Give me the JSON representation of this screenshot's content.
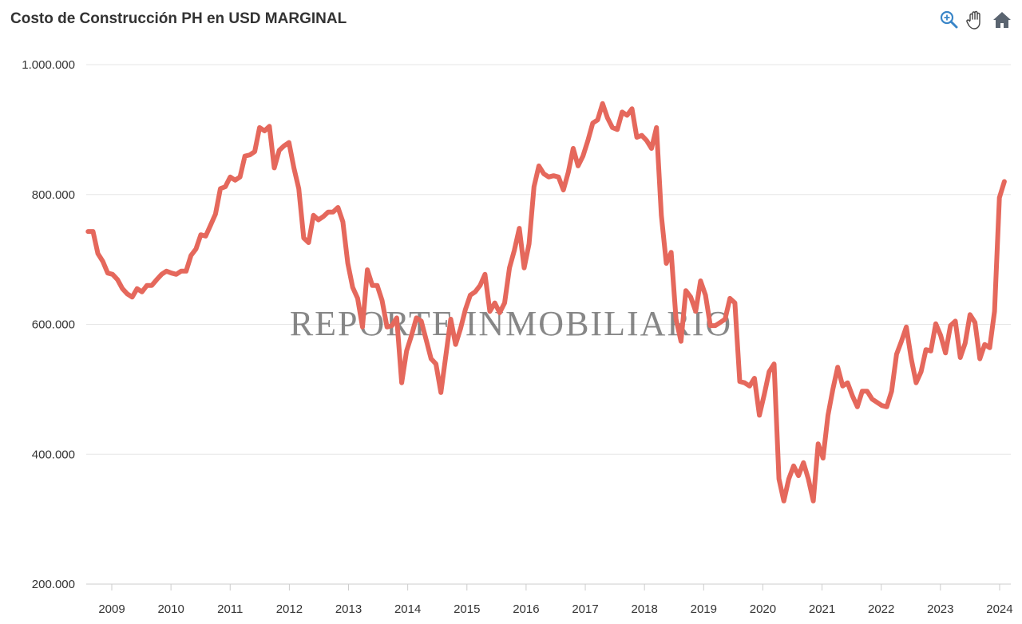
{
  "header": {
    "title": "Costo de Construcción PH en USD MARGINAL"
  },
  "toolbar": {
    "icons": [
      "zoom-in-icon",
      "pan-hand-icon",
      "home-icon"
    ]
  },
  "watermark": "REPORTE INMOBILIARIO",
  "colors": {
    "line": "#e5685c",
    "grid": "#e6e6e6",
    "zoom": "#3a86c8",
    "home": "#5a6470"
  },
  "chart_data": {
    "type": "line",
    "title": "Costo de Construcción PH en USD MARGINAL",
    "xlabel": "",
    "ylabel": "",
    "ylim": [
      200000,
      1000000
    ],
    "yticks": [
      200000,
      400000,
      600000,
      800000,
      1000000
    ],
    "ytick_labels": [
      "200.000",
      "400.000",
      "600.000",
      "800.000",
      "1.000.000"
    ],
    "xticks": [
      2009,
      2010,
      2011,
      2012,
      2013,
      2014,
      2015,
      2016,
      2017,
      2018,
      2019,
      2020,
      2021,
      2022,
      2023,
      2024
    ],
    "x_start": 2008.6,
    "x_end": 2024.08,
    "grid": true,
    "series": [
      {
        "name": "Costo PH USD marginal",
        "values": [
          743000,
          743000,
          709000,
          697000,
          679000,
          677000,
          669000,
          655000,
          647000,
          642000,
          655000,
          650000,
          660000,
          660000,
          669000,
          677000,
          682000,
          679000,
          677000,
          682000,
          682000,
          706000,
          716000,
          738000,
          736000,
          753000,
          770000,
          809000,
          812000,
          827000,
          822000,
          827000,
          859000,
          861000,
          866000,
          903000,
          898000,
          905000,
          841000,
          868000,
          875000,
          880000,
          841000,
          809000,
          733000,
          726000,
          768000,
          761000,
          766000,
          773000,
          773000,
          780000,
          758000,
          694000,
          657000,
          640000,
          596000,
          684000,
          660000,
          660000,
          637000,
          596000,
          598000,
          610000,
          510000,
          559000,
          583000,
          610000,
          605000,
          576000,
          547000,
          539000,
          495000,
          551000,
          608000,
          569000,
          593000,
          623000,
          645000,
          650000,
          660000,
          677000,
          620000,
          633000,
          618000,
          633000,
          687000,
          714000,
          748000,
          687000,
          724000,
          812000,
          844000,
          832000,
          827000,
          829000,
          827000,
          807000,
          834000,
          871000,
          844000,
          859000,
          883000,
          910000,
          915000,
          940000,
          918000,
          903000,
          900000,
          927000,
          922000,
          932000,
          888000,
          891000,
          883000,
          871000,
          903000,
          768000,
          694000,
          711000,
          608000,
          574000,
          652000,
          642000,
          620000,
          667000,
          645000,
          598000,
          598000,
          603000,
          608000,
          640000,
          633000,
          512000,
          510000,
          505000,
          517000,
          460000,
          492000,
          527000,
          539000,
          362000,
          328000,
          362000,
          382000,
          367000,
          387000,
          362000,
          328000,
          416000,
          394000,
          460000,
          500000,
          534000,
          505000,
          510000,
          490000,
          473000,
          497000,
          497000,
          485000,
          480000,
          475000,
          473000,
          497000,
          554000,
          574000,
          596000,
          547000,
          510000,
          527000,
          561000,
          559000,
          601000,
          583000,
          556000,
          598000,
          605000,
          549000,
          571000,
          615000,
          603000,
          547000,
          569000,
          564000,
          620000,
          795000,
          820000
        ]
      }
    ]
  }
}
